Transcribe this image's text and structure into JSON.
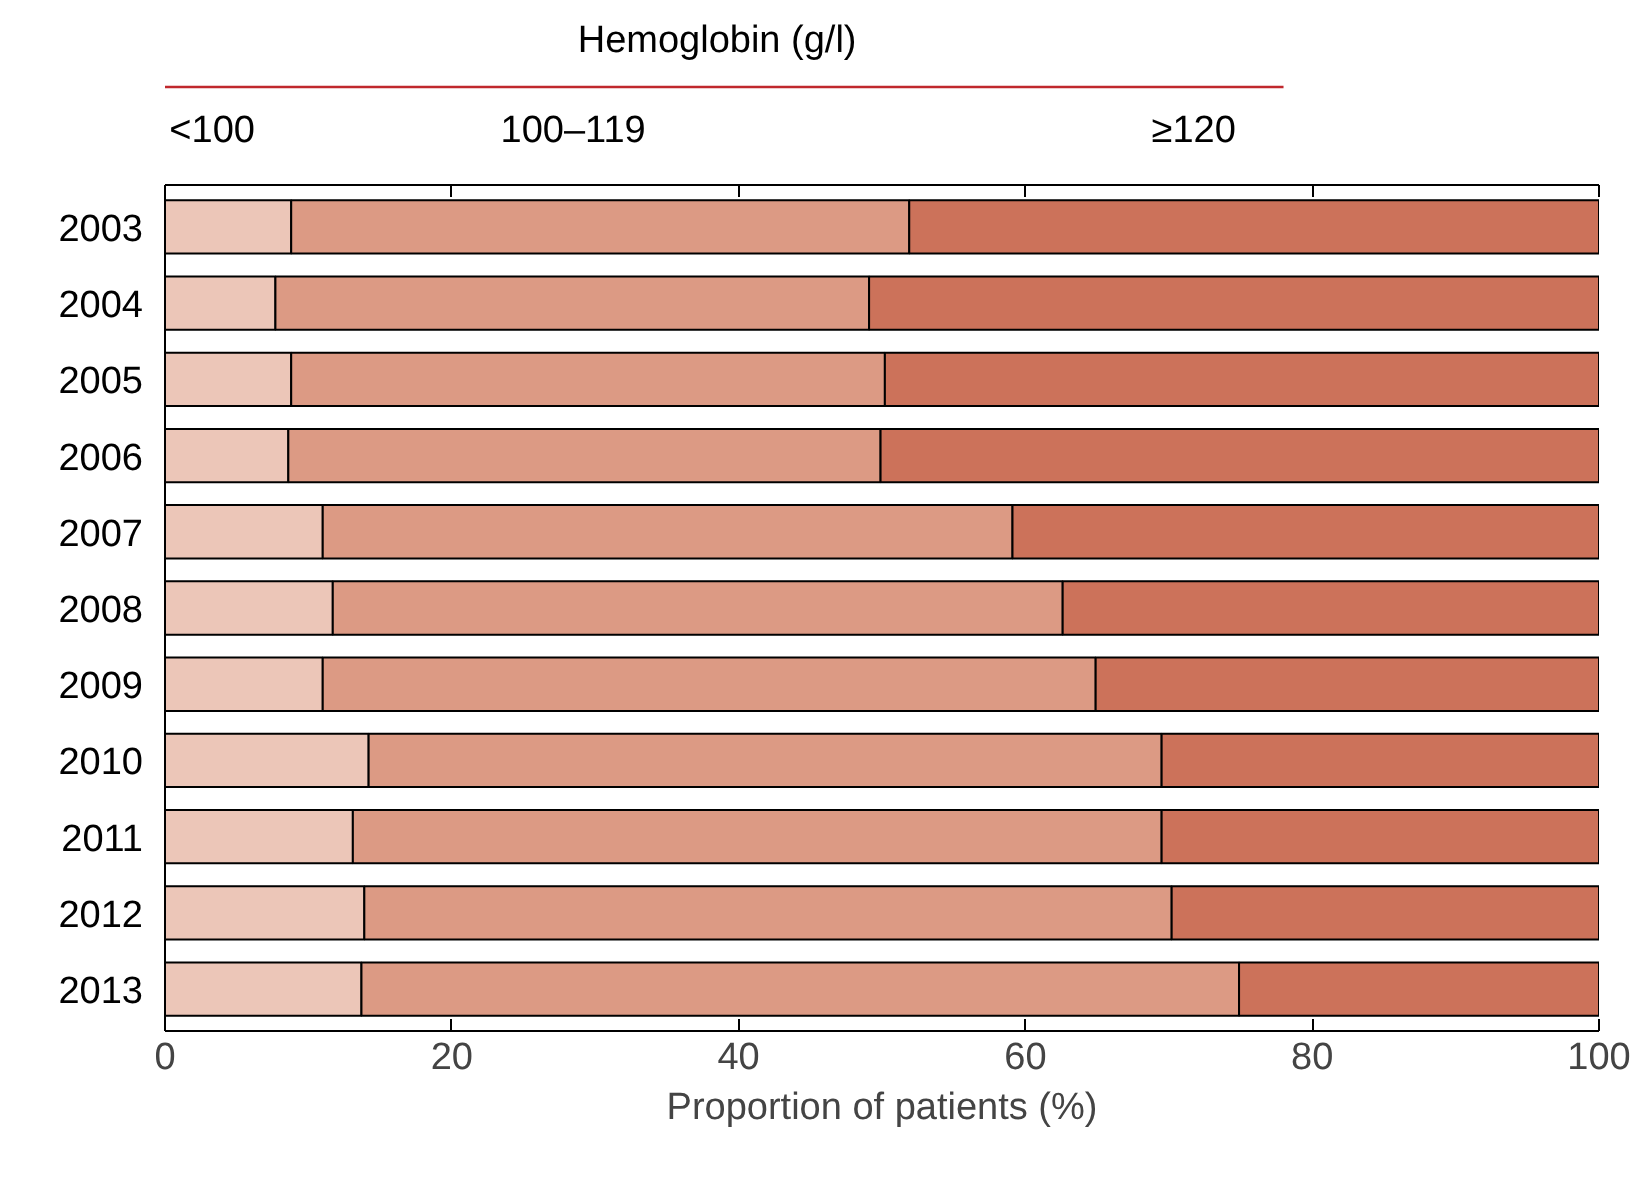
{
  "chart_data": {
    "type": "bar",
    "orientation": "horizontal",
    "stacked": true,
    "categories": [
      "2003",
      "2004",
      "2005",
      "2006",
      "2007",
      "2008",
      "2009",
      "2010",
      "2011",
      "2012",
      "2013"
    ],
    "series": [
      {
        "name": "<100",
        "color": "#ecc6b8",
        "values": [
          8.8,
          7.7,
          8.8,
          8.6,
          11.0,
          11.7,
          11.0,
          14.2,
          13.1,
          13.9,
          13.7
        ]
      },
      {
        "name": "100–119",
        "color": "#dc9a84",
        "values": [
          43.1,
          41.4,
          41.4,
          41.3,
          48.1,
          50.9,
          53.9,
          55.3,
          56.4,
          56.3,
          61.2
        ]
      },
      {
        "name": "≥120",
        "color": "#cc725a",
        "values": [
          48.1,
          50.9,
          49.8,
          50.1,
          40.9,
          37.4,
          35.1,
          30.5,
          30.5,
          29.8,
          25.1
        ]
      }
    ],
    "legend_title": "Hemoglobin (g/l)",
    "xlabel": "Proportion of patients (%)",
    "xlim": [
      0,
      100
    ],
    "xticks": [
      0,
      20,
      40,
      60,
      80,
      100
    ],
    "grid": false
  }
}
